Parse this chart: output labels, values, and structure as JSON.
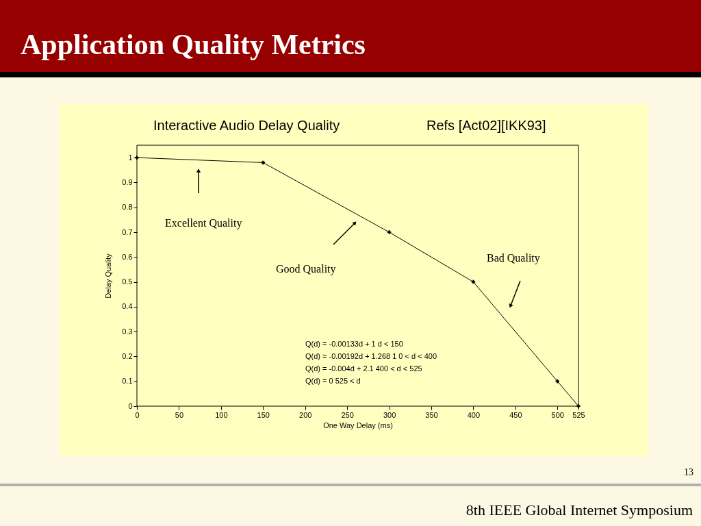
{
  "chart_data": {
    "type": "line",
    "title": "Application Quality  Metrics",
    "subtitle": "Interactive Audio Delay Quality",
    "xlabel": "One Way Delay (ms)",
    "ylabel": "Delay Quality",
    "x": [
      0,
      150,
      300,
      400,
      500,
      525
    ],
    "series": [
      {
        "color": "#000000",
        "values": [
          1,
          0.98,
          0.7,
          0.5,
          0.1,
          0
        ]
      }
    ],
    "xlim": [
      0,
      525
    ],
    "xticks": [
      0,
      50,
      100,
      150,
      200,
      250,
      300,
      350,
      400,
      450,
      500,
      525
    ],
    "ylim": [
      0,
      1.05
    ],
    "yticks": [
      0,
      0.1,
      0.2,
      0.3,
      0.4,
      0.5,
      0.6,
      0.7,
      0.8,
      0.9,
      1
    ],
    "grid": false,
    "legend": false,
    "marker": "cross",
    "line_style": "solid",
    "annotations": [
      "Refs [Act02][IKK93]",
      "Excellent Quality",
      "Good Quality",
      "Bad Quality",
      "Q(d) = -0.00133d + 1            d < 150",
      "Q(d) = -0.00192d + 1.268   1  0 < d < 400",
      "Q(d) = -0.004d + 2.1       400 < d < 525",
      "Q(d) = 0                   525 < d",
      "13",
      "8th IEEE Global Internet Symposium"
    ]
  }
}
